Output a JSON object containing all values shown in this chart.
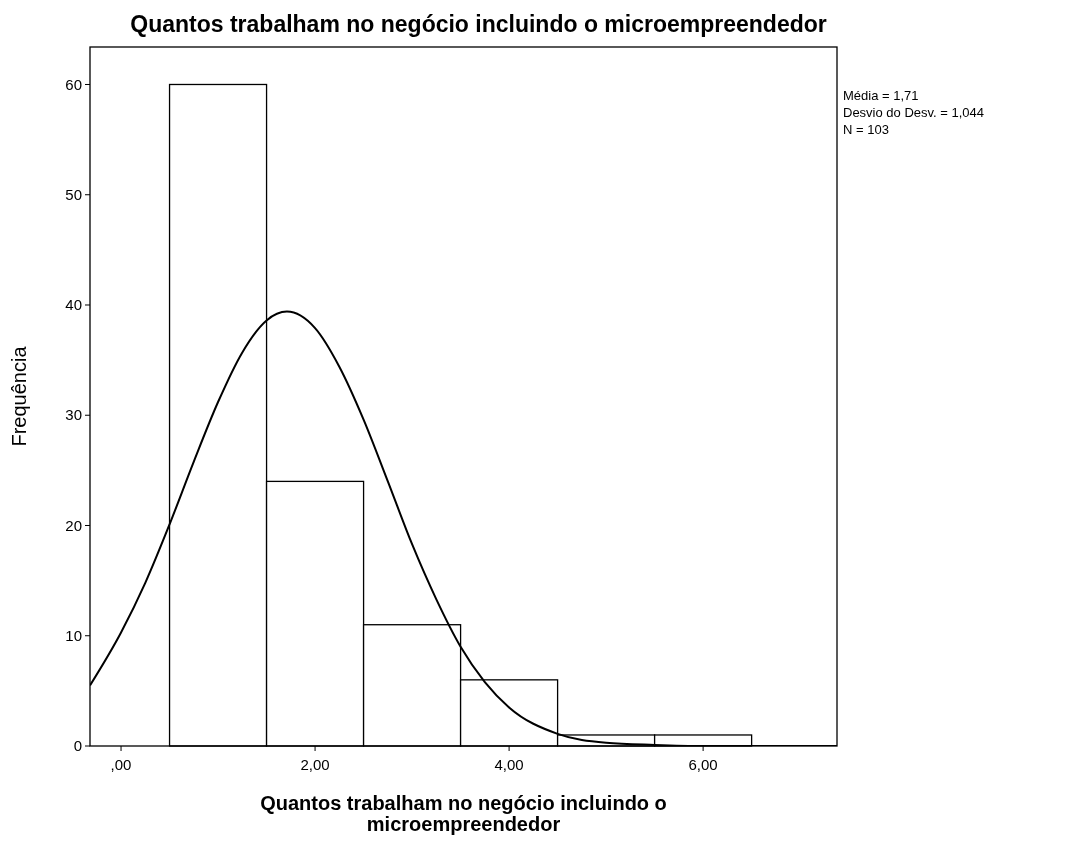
{
  "chart_data": {
    "type": "histogram",
    "title": "Quantos trabalham no negócio incluindo o microempreendedor",
    "xlabel": "Quantos trabalham no negócio incluindo o microempreendedor",
    "ylabel": "Frequência",
    "bins": [
      0.5,
      1.5,
      2.5,
      3.5,
      4.5,
      5.5,
      6.5
    ],
    "values": [
      60,
      24,
      11,
      6,
      1,
      1
    ],
    "color": "#ffffff",
    "series": [
      {
        "type": "line",
        "color": "#000000",
        "x": [
          -0.32,
          0,
          0.25,
          0.5,
          0.75,
          1,
          1.25,
          1.5,
          1.71,
          2,
          2.25,
          2.5,
          2.75,
          3,
          3.25,
          3.5,
          3.75,
          4,
          4.5,
          5,
          5.5,
          6,
          7.38
        ],
        "values": [
          5.5,
          10.3,
          14.8,
          20.1,
          25.8,
          31.2,
          35.7,
          38.6,
          39.4,
          37.9,
          34.4,
          29.6,
          24,
          18.3,
          13.3,
          9,
          5.8,
          3.5,
          1.1,
          0.3,
          0.1,
          0,
          0
        ]
      }
    ],
    "xlim": [
      -0.32,
      7.38
    ],
    "xticks": [
      {
        "value": 0,
        "label": ",00"
      },
      {
        "value": 2,
        "label": "2,00"
      },
      {
        "value": 4,
        "label": "4,00"
      },
      {
        "value": 6,
        "label": "6,00"
      }
    ],
    "ylim": [
      0,
      63.4
    ],
    "yticks": [
      0,
      10,
      20,
      30,
      40,
      50,
      60
    ],
    "annotations": [
      "Média = 1,71",
      "Desvio do Desv. = 1,044",
      "N = 103"
    ],
    "grid": false
  }
}
